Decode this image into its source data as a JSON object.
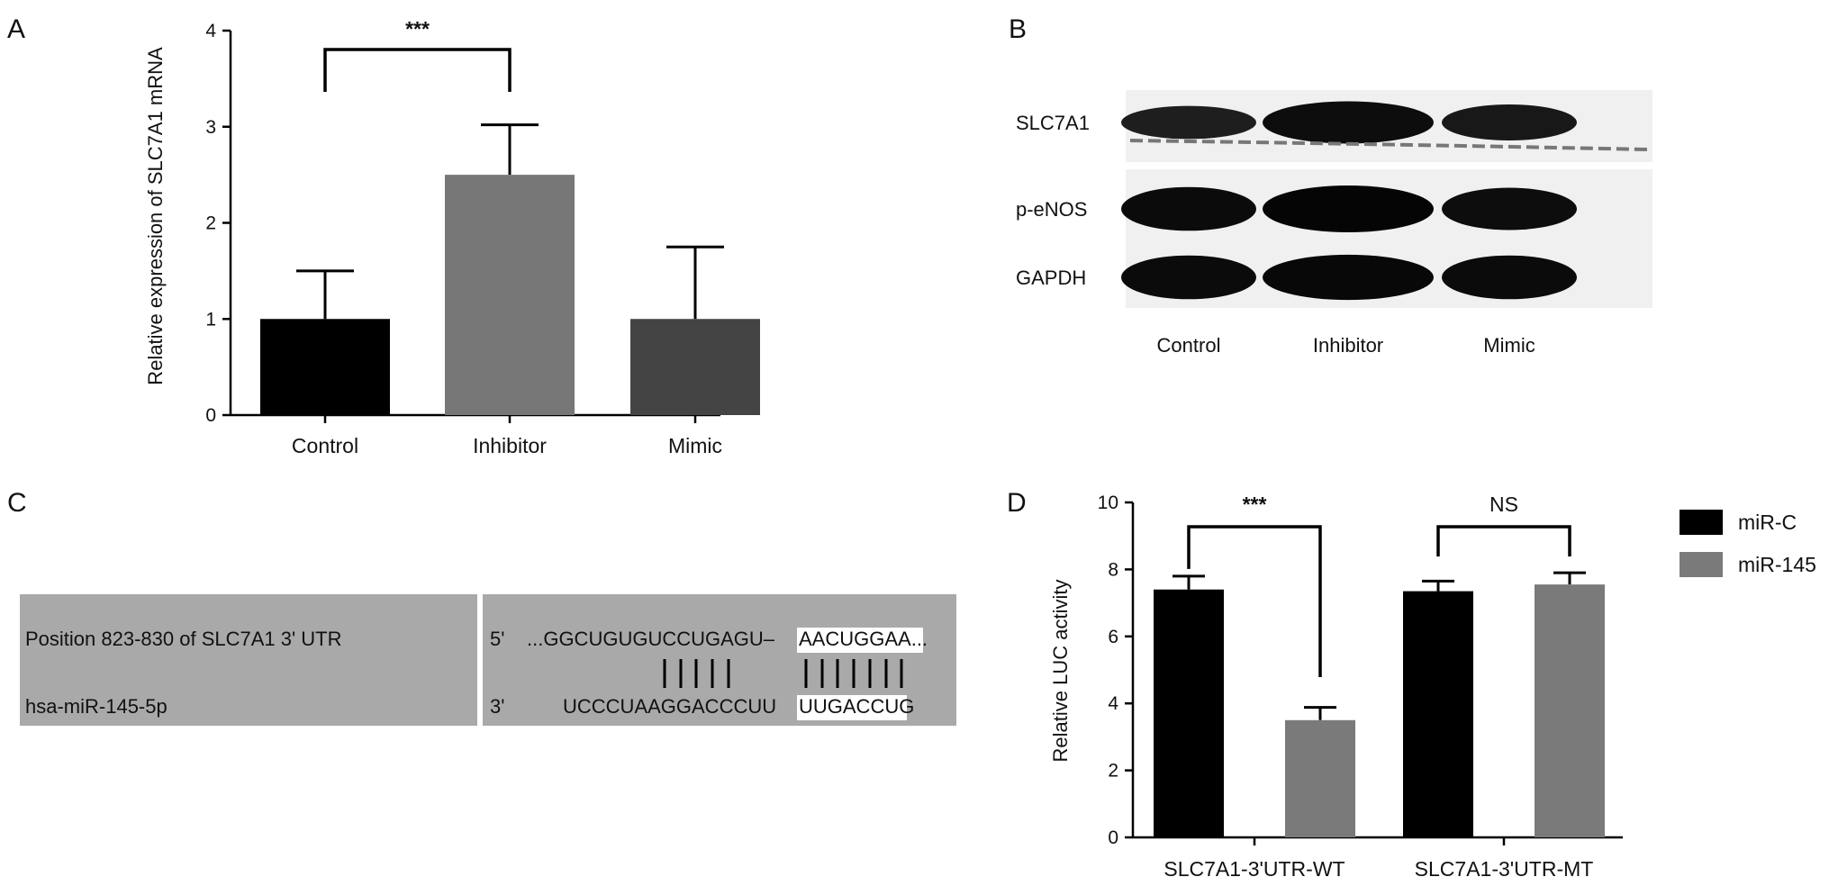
{
  "panels": {
    "a": "A",
    "b": "B",
    "c": "C",
    "d": "D"
  },
  "chart_data": [
    {
      "panel": "A",
      "type": "bar",
      "categories": [
        "Control",
        "Inhibitor",
        "Mimic"
      ],
      "values": [
        1.0,
        2.5,
        1.0
      ],
      "errors": [
        0.5,
        0.52,
        0.75
      ],
      "colors": [
        "#000000",
        "#777777",
        "#444444"
      ],
      "ylabel": "Relative expression of SLC7A1 mRNA",
      "ylim": [
        0,
        4
      ],
      "yticks": [
        "0",
        "1",
        "2",
        "3",
        "4"
      ],
      "significance": {
        "from": 0,
        "to": 1,
        "label": "***"
      }
    },
    {
      "panel": "D",
      "type": "bar",
      "categories": [
        "SLC7A1-3'UTR-WT",
        "SLC7A1-3'UTR-MT"
      ],
      "series": [
        {
          "name": "miR-C",
          "values": [
            7.4,
            7.35
          ],
          "errors": [
            0.4,
            0.3
          ],
          "color": "#000000"
        },
        {
          "name": "miR-145",
          "values": [
            3.5,
            7.55
          ],
          "errors": [
            0.38,
            0.35
          ],
          "color": "#7a7a7a"
        }
      ],
      "ylabel": "Relative LUC activity",
      "ylim": [
        0,
        10
      ],
      "yticks": [
        "0",
        "2",
        "4",
        "6",
        "8",
        "10"
      ],
      "significance": [
        {
          "group": 0,
          "label": "***"
        },
        {
          "group": 1,
          "label": "NS"
        }
      ],
      "legend_position": "right"
    }
  ],
  "blot": {
    "rows": [
      "SLC7A1",
      "p-eNOS",
      "GAPDH"
    ],
    "lanes": [
      "Control",
      "Inhibitor",
      "Mimic"
    ],
    "intensity": [
      [
        0.55,
        0.85,
        0.65
      ],
      [
        0.9,
        1.0,
        0.85
      ],
      [
        0.9,
        0.95,
        0.9
      ]
    ]
  },
  "alignment": {
    "target_label": "Position 823-830 of SLC7A1 3' UTR",
    "mirna_label": "hsa-miR-145-5p",
    "target_end": "5'",
    "mirna_end": "3'",
    "target_prefix": "...GGCUGUGUCCUGAGU–",
    "target_seed": "AACUGGAA",
    "target_suffix": "...",
    "mirna_prefix": "UCCCUAAGGACCCUU",
    "mirna_seed": "UUGACCUG"
  }
}
